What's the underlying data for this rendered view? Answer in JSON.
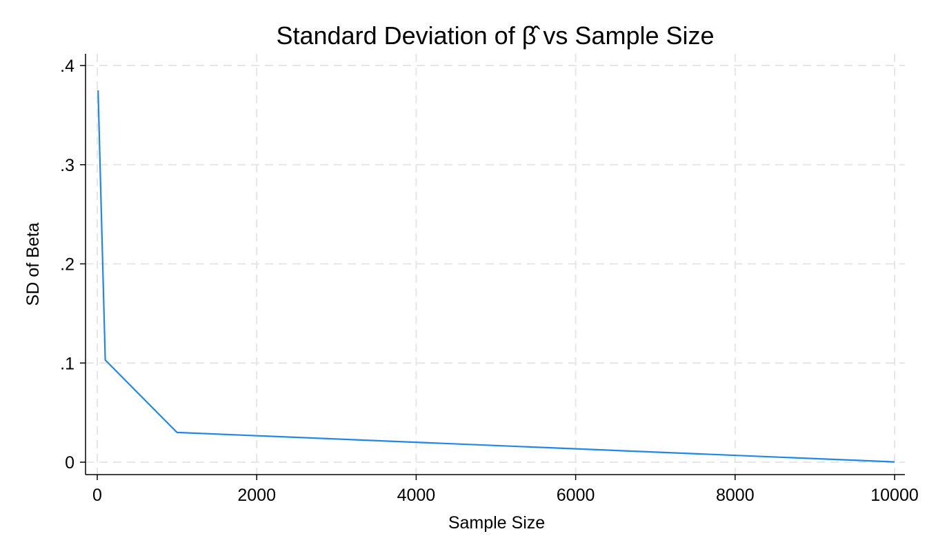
{
  "chart_data": {
    "type": "line",
    "title": "Standard Deviation of β̂ vs Sample Size",
    "xlabel": "Sample Size",
    "ylabel": "SD of Beta",
    "xlim": [
      0,
      10000
    ],
    "ylim": [
      0,
      0.4
    ],
    "x_ticks": [
      0,
      2000,
      4000,
      6000,
      8000,
      10000
    ],
    "x_tick_labels": [
      "0",
      "2000",
      "4000",
      "6000",
      "8000",
      "10000"
    ],
    "y_ticks": [
      0,
      0.1,
      0.2,
      0.3,
      0.4
    ],
    "y_tick_labels": [
      "0",
      ".1",
      ".2",
      ".3",
      ".4"
    ],
    "grid": true,
    "legend": "none",
    "series": [
      {
        "color": "#1f87e8",
        "x": [
          10,
          100,
          1000,
          10000
        ],
        "y": [
          0.375,
          0.103,
          0.03,
          0.0003
        ]
      }
    ]
  }
}
